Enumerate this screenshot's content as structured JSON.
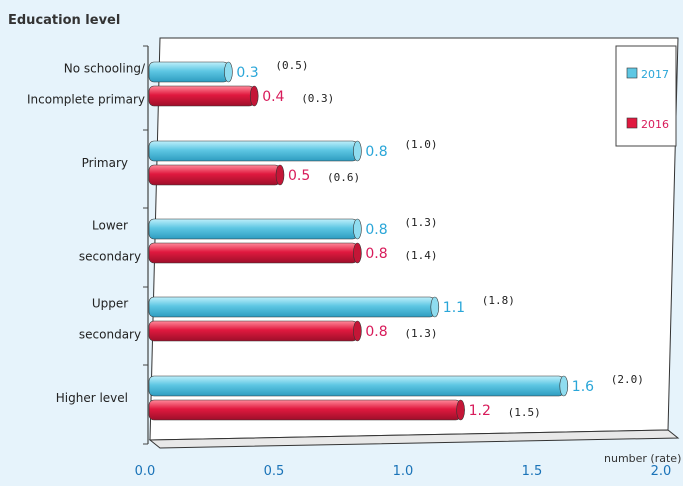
{
  "colors": {
    "series_2017": "#5ec7e3",
    "series_2016": "#e0193f",
    "label_2017": "#2aa6d8",
    "label_2016": "#d81b5a",
    "tick": "#1a73b8"
  },
  "chart_data": {
    "type": "bar",
    "orientation": "horizontal",
    "title": "Education level",
    "xlabel": "number (rate)",
    "xlim": [
      0,
      2.0
    ],
    "xticks": [
      "0.0",
      "0.5",
      "1.0",
      "1.5",
      "2.0"
    ],
    "categories": [
      [
        "No schooling/",
        "Incomplete primary"
      ],
      [
        "Primary"
      ],
      [
        "Lower",
        "secondary"
      ],
      [
        "Upper",
        "secondary"
      ],
      [
        "Higher level"
      ]
    ],
    "series": [
      {
        "name": "2017",
        "values": [
          0.3,
          0.8,
          0.8,
          1.1,
          1.6
        ],
        "labels": [
          "0.3",
          "0.8",
          "0.8",
          "1.1",
          "1.6"
        ],
        "rates": [
          "(0.5)",
          "(1.0)",
          "(1.3)",
          "(1.8)",
          "(2.0)"
        ]
      },
      {
        "name": "2016",
        "values": [
          0.4,
          0.5,
          0.8,
          0.8,
          1.2
        ],
        "labels": [
          "0.4",
          "0.5",
          "0.8",
          "0.8",
          "1.2"
        ],
        "rates": [
          "(0.3)",
          "(0.6)",
          "(1.4)",
          "(1.3)",
          "(1.5)"
        ]
      }
    ],
    "legend": "top-right"
  }
}
